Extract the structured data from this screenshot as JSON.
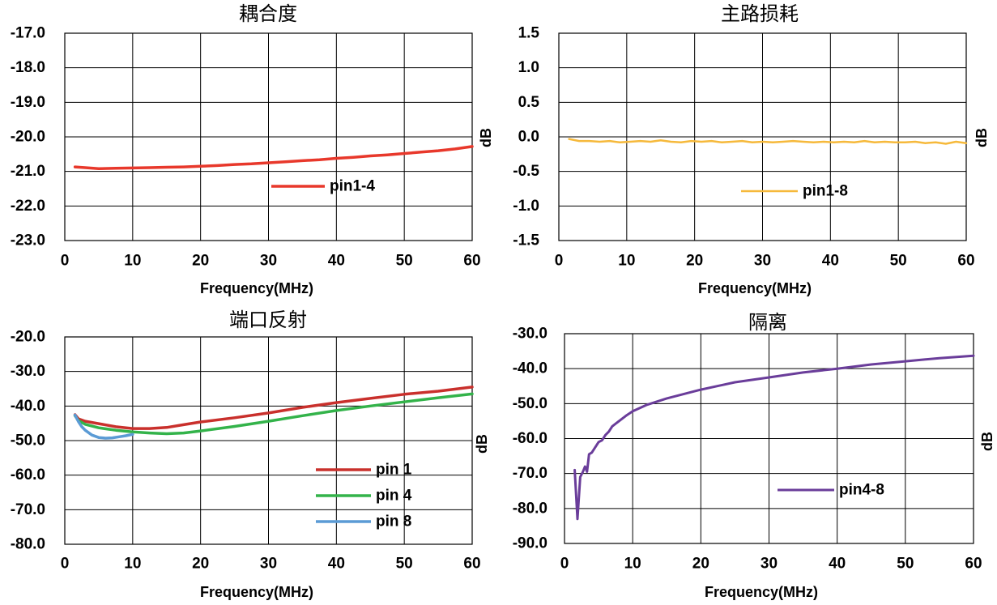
{
  "chart_data": [
    {
      "type": "line",
      "title": "耦合度",
      "xlabel": "Frequency(MHz)",
      "ylabel": "dB",
      "ylabel_side": "right",
      "xlim": [
        0,
        60
      ],
      "ylim": [
        -23,
        -17
      ],
      "xticks": [
        "0",
        "10",
        "20",
        "30",
        "40",
        "50",
        "60"
      ],
      "yticks": [
        "-17.0",
        "-18.0",
        "-19.0",
        "-20.0",
        "-21.0",
        "-22.0",
        "-23.0"
      ],
      "grid": true,
      "legend": "center",
      "series": [
        {
          "name": "pin1-4",
          "color": "#e8382b",
          "x": [
            1.5,
            3,
            5,
            7.5,
            10,
            12.5,
            15,
            17.5,
            20,
            22.5,
            25,
            27.5,
            30,
            32.5,
            35,
            37.5,
            40,
            42.5,
            45,
            47.5,
            50,
            52.5,
            55,
            57.5,
            60
          ],
          "y": [
            -20.87,
            -20.89,
            -20.92,
            -20.91,
            -20.9,
            -20.89,
            -20.88,
            -20.87,
            -20.85,
            -20.83,
            -20.8,
            -20.78,
            -20.75,
            -20.72,
            -20.69,
            -20.66,
            -20.62,
            -20.59,
            -20.55,
            -20.52,
            -20.48,
            -20.44,
            -20.4,
            -20.35,
            -20.28
          ]
        }
      ]
    },
    {
      "type": "line",
      "title": "主路损耗",
      "xlabel": "Frequency(MHz)",
      "ylabel": "dB",
      "ylabel_side": "right",
      "xlim": [
        0,
        60
      ],
      "ylim": [
        -1.5,
        1.5
      ],
      "xticks": [
        "0",
        "10",
        "20",
        "30",
        "40",
        "50",
        "60"
      ],
      "yticks": [
        "1.5",
        "1.0",
        "0.5",
        "0.0",
        "-0.5",
        "-1.0",
        "-1.5"
      ],
      "grid": true,
      "legend": "lower-center",
      "series": [
        {
          "name": "pin1-8",
          "color": "#f6b93b",
          "x": [
            1.5,
            3,
            4.5,
            6,
            7.5,
            9,
            10.5,
            12,
            13.5,
            15,
            16.5,
            18,
            19.5,
            21,
            22.5,
            24,
            25.5,
            27,
            28.5,
            30,
            31.5,
            33,
            34.5,
            36,
            37.5,
            39,
            40.5,
            42,
            43.5,
            45,
            46.5,
            48,
            49.5,
            51,
            52.5,
            54,
            55.5,
            57,
            58.5,
            60
          ],
          "y": [
            -0.03,
            -0.06,
            -0.06,
            -0.07,
            -0.06,
            -0.08,
            -0.07,
            -0.06,
            -0.07,
            -0.05,
            -0.07,
            -0.08,
            -0.06,
            -0.07,
            -0.06,
            -0.08,
            -0.07,
            -0.06,
            -0.08,
            -0.07,
            -0.08,
            -0.07,
            -0.06,
            -0.07,
            -0.08,
            -0.07,
            -0.08,
            -0.07,
            -0.08,
            -0.06,
            -0.08,
            -0.07,
            -0.08,
            -0.08,
            -0.07,
            -0.09,
            -0.08,
            -0.1,
            -0.07,
            -0.09
          ]
        }
      ]
    },
    {
      "type": "line",
      "title": "端口反射",
      "xlabel": "Frequency(MHz)",
      "ylabel": "dB",
      "ylabel_side": "right",
      "xlim": [
        0,
        60
      ],
      "ylim": [
        -80,
        -20
      ],
      "xticks": [
        "0",
        "10",
        "20",
        "30",
        "40",
        "50",
        "60"
      ],
      "yticks": [
        "-20.0",
        "-30.0",
        "-40.0",
        "-50.0",
        "-60.0",
        "-70.0",
        "-80.0"
      ],
      "grid": true,
      "legend": "lower-right",
      "series": [
        {
          "name": "pin 1",
          "color": "#c9302c",
          "x": [
            1.5,
            2,
            3,
            5,
            7.5,
            10,
            12.5,
            15,
            17.5,
            20,
            25,
            30,
            35,
            40,
            45,
            50,
            55,
            60
          ],
          "y": [
            -42.5,
            -43.7,
            -44.4,
            -45.1,
            -46.0,
            -46.5,
            -46.5,
            -46.2,
            -45.4,
            -44.6,
            -43.4,
            -42.0,
            -40.4,
            -39.0,
            -37.8,
            -36.6,
            -35.7,
            -34.5
          ]
        },
        {
          "name": "pin 4",
          "color": "#33b34a",
          "x": [
            1.5,
            2,
            3,
            5,
            7.5,
            10,
            12.5,
            15,
            17.5,
            20,
            25,
            30,
            35,
            40,
            45,
            50,
            55,
            60
          ],
          "y": [
            -42.8,
            -44.2,
            -45.3,
            -46.3,
            -47.0,
            -47.5,
            -47.8,
            -48.0,
            -47.8,
            -47.2,
            -45.9,
            -44.4,
            -42.8,
            -41.3,
            -40.0,
            -38.8,
            -37.6,
            -36.5
          ]
        },
        {
          "name": "pin 8",
          "color": "#5b9bd5",
          "x": [
            1.5,
            2,
            2.5,
            3,
            4,
            5,
            6,
            7,
            8,
            9,
            10
          ],
          "y": [
            -42.6,
            -44.5,
            -46.0,
            -47.0,
            -48.4,
            -49.1,
            -49.3,
            -49.2,
            -48.9,
            -48.6,
            -48.2
          ]
        }
      ]
    },
    {
      "type": "line",
      "title": "隔离",
      "xlabel": "Frequency(MHz)",
      "ylabel": "dB",
      "ylabel_side": "right",
      "xlim": [
        0,
        60
      ],
      "ylim": [
        -90,
        -30
      ],
      "xticks": [
        "0",
        "10",
        "20",
        "30",
        "40",
        "50",
        "60"
      ],
      "yticks": [
        "-30.0",
        "-40.0",
        "-50.0",
        "-60.0",
        "-70.0",
        "-80.0",
        "-90.0"
      ],
      "grid": true,
      "legend": "lower-right",
      "series": [
        {
          "name": "pin4-8",
          "color": "#6a3d9a",
          "x": [
            1.5,
            1.9,
            2.3,
            2.7,
            3.0,
            3.3,
            3.6,
            4.0,
            4.5,
            5.0,
            5.5,
            6.0,
            6.5,
            7.0,
            8.0,
            9.0,
            10,
            12,
            15,
            20,
            25,
            30,
            35,
            40,
            45,
            50,
            55,
            60
          ],
          "y": [
            -69.0,
            -83.0,
            -71.0,
            -69.5,
            -68.0,
            -69.5,
            -64.5,
            -64.0,
            -62.5,
            -61.0,
            -60.5,
            -59.0,
            -58.0,
            -56.5,
            -55.0,
            -53.5,
            -52.2,
            -50.4,
            -48.5,
            -46.0,
            -43.9,
            -42.5,
            -41.1,
            -40.0,
            -38.8,
            -37.9,
            -37.0,
            -36.3
          ]
        }
      ]
    }
  ]
}
